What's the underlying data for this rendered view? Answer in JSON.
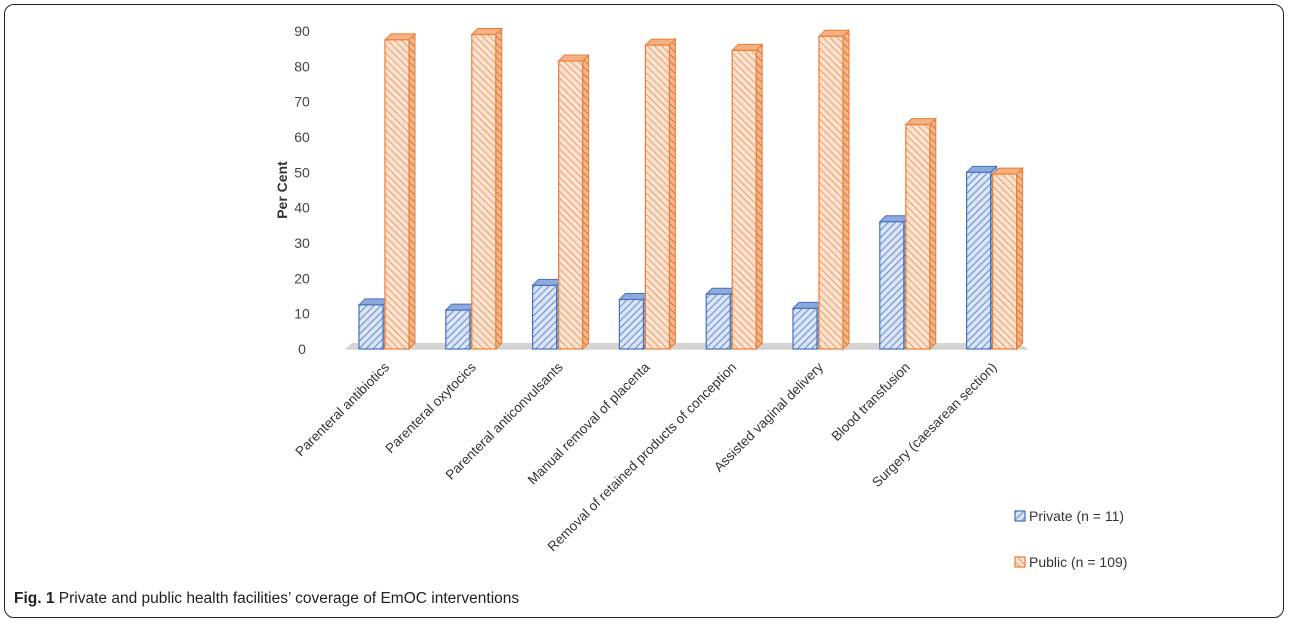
{
  "caption": {
    "label": "Fig. 1",
    "text": "Private and public health facilities’ coverage of EmOC interventions"
  },
  "chart_data": {
    "type": "bar",
    "title": "",
    "xlabel": "",
    "ylabel": "Per Cent",
    "ylim": [
      0,
      90
    ],
    "yticks": [
      0,
      10,
      20,
      30,
      40,
      50,
      60,
      70,
      80,
      90
    ],
    "categories": [
      "Parenteral antibiotics",
      "Parenteral oxytocics",
      "Parenteral anticonvulsants",
      "Manual removal of placenta",
      "Removal of retained products of conception",
      "Assisted vaginal delivery",
      "Blood transfusion",
      "Surgery (caesarean section)"
    ],
    "series": [
      {
        "name": "Private (n = 11)",
        "color": "#4472C4",
        "values": [
          12.5,
          11,
          18,
          14,
          15.5,
          11.5,
          36,
          50
        ]
      },
      {
        "name": "Public (n = 109)",
        "color": "#ED7D31",
        "values": [
          87.5,
          89,
          81.5,
          86,
          84.5,
          88.5,
          63.5,
          49.5
        ]
      }
    ],
    "legend_position": "bottom-right",
    "grid": false,
    "style": "3d-hatched"
  }
}
